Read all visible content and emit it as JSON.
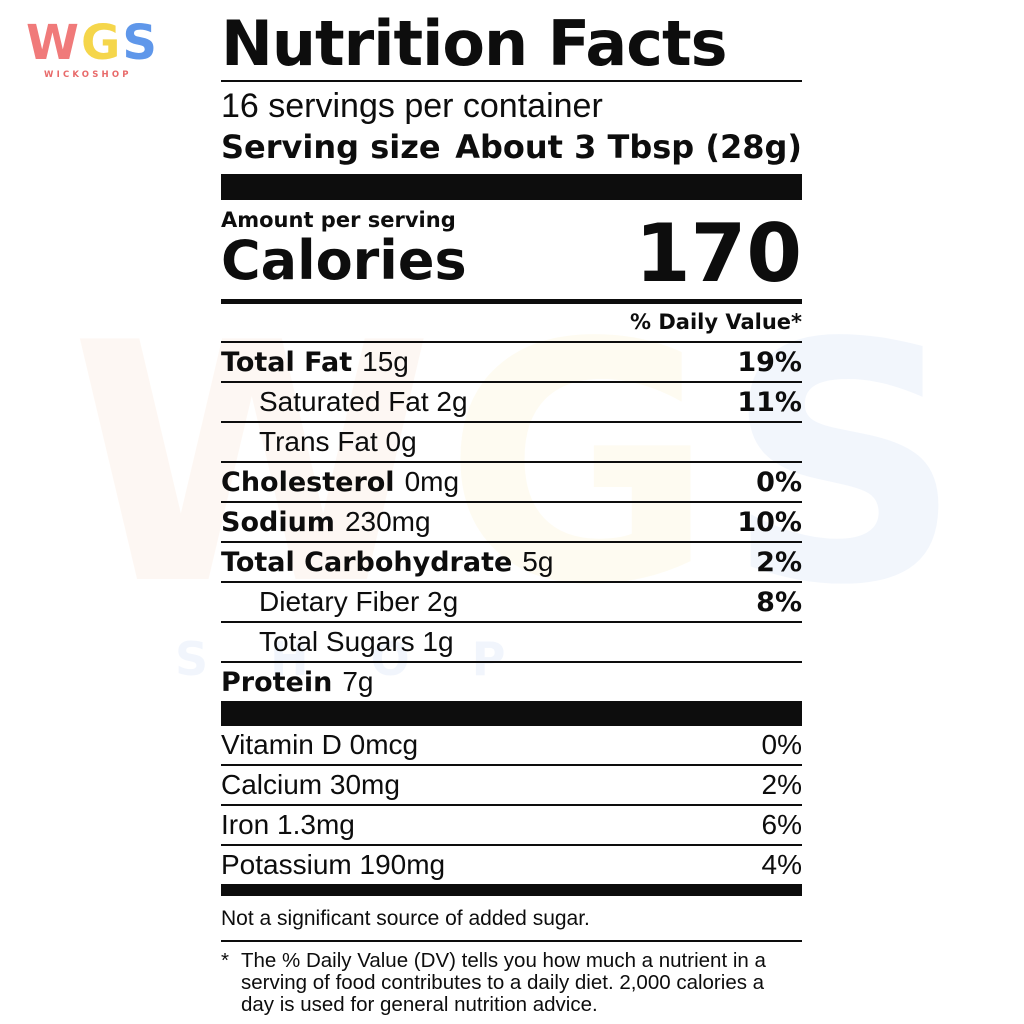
{
  "brand": {
    "logo_letters": [
      "W",
      "G",
      "S"
    ],
    "logo_subtitle": "WICKOSHOP",
    "colors": {
      "w": "#f07a7a",
      "g": "#f5d64b",
      "s": "#5f97ea"
    },
    "watermark_text": "SHOP"
  },
  "label": {
    "title": "Nutrition Facts",
    "servings_per_container": "16 servings per container",
    "serving_size_label": "Serving size",
    "serving_size_value": "About 3 Tbsp (28g)",
    "amount_per_serving": "Amount per serving",
    "calories_label": "Calories",
    "calories_value": "170",
    "daily_value_header": "% Daily Value*",
    "nutrients": [
      {
        "name": "Total Fat",
        "amount": "15g",
        "dv": "19%",
        "bold": true,
        "indent": false
      },
      {
        "name": "Saturated Fat 2g",
        "amount": "",
        "dv": "11%",
        "bold": false,
        "indent": true
      },
      {
        "name": "Trans Fat 0g",
        "amount": "",
        "dv": "",
        "bold": false,
        "indent": true
      },
      {
        "name": "Cholesterol",
        "amount": "0mg",
        "dv": "0%",
        "bold": true,
        "indent": false
      },
      {
        "name": "Sodium",
        "amount": "230mg",
        "dv": "10%",
        "bold": true,
        "indent": false
      },
      {
        "name": "Total Carbohydrate",
        "amount": "5g",
        "dv": "2%",
        "bold": true,
        "indent": false
      },
      {
        "name": "Dietary Fiber 2g",
        "amount": "",
        "dv": "8%",
        "bold": false,
        "indent": true
      },
      {
        "name": "Total Sugars 1g",
        "amount": "",
        "dv": "",
        "bold": false,
        "indent": true
      },
      {
        "name": "Protein",
        "amount": "7g",
        "dv": "",
        "bold": true,
        "indent": false
      }
    ],
    "vitamins": [
      {
        "name": "Vitamin D 0mcg",
        "dv": "0%"
      },
      {
        "name": "Calcium 30mg",
        "dv": "2%"
      },
      {
        "name": "Iron 1.3mg",
        "dv": "6%"
      },
      {
        "name": "Potassium 190mg",
        "dv": "4%"
      }
    ],
    "footnote_added_sugar": "Not a significant source of added sugar.",
    "footnote_star": "*",
    "footnote_dv": "The % Daily Value (DV) tells you how much a nutrient in a serving of food contributes to a daily diet. 2,000 calories a day is used for general nutrition advice."
  }
}
